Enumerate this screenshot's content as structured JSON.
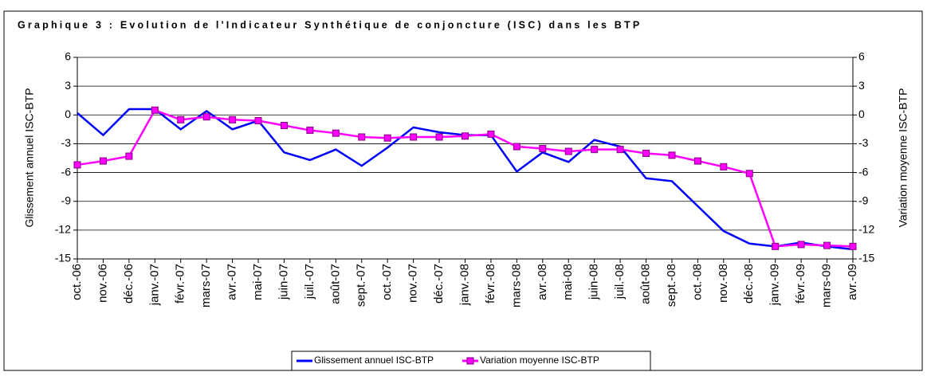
{
  "chart_data": {
    "type": "line",
    "title": "Graphique 3 : Evolution de l'Indicateur Synthétique de conjoncture (ISC) dans les BTP",
    "ylabel": "Glissement annuel ISC-BTP",
    "y2label": "Variation moyenne ISC-BTP",
    "categories": [
      "oct.-06",
      "nov.-06",
      "déc.-06",
      "janv.-07",
      "févr.-07",
      "mars-07",
      "avr.-07",
      "mai-07",
      "juin-07",
      "juil.-07",
      "août-07",
      "sept.-07",
      "oct.-07",
      "nov.-07",
      "déc.-07",
      "janv.-08",
      "févr.-08",
      "mars-08",
      "avr.-08",
      "mai-08",
      "juin-08",
      "juil.-08",
      "août-08",
      "sept.-08",
      "oct.-08",
      "nov.-08",
      "déc.-08",
      "janv.-09",
      "févr.-09",
      "mars-09",
      "avr.-09"
    ],
    "series": [
      {
        "name": "Glissement annuel ISC-BTP",
        "color": "#0000ff",
        "axis": "y",
        "values": [
          0.2,
          -2.1,
          0.6,
          0.6,
          -1.5,
          0.4,
          -1.5,
          -0.6,
          -3.9,
          -4.7,
          -3.6,
          -5.3,
          -3.4,
          -1.3,
          -1.8,
          -2.1,
          -2.1,
          -5.9,
          -3.9,
          -4.9,
          -2.6,
          -3.3,
          -6.6,
          -6.9,
          -9.5,
          -12.1,
          -13.4,
          -13.7,
          -13.3,
          -13.7,
          -14.0
        ]
      },
      {
        "name": "Variation moyenne ISC-BTP",
        "color": "#ff00ff",
        "axis": "y2",
        "values": [
          -5.2,
          -4.8,
          -4.3,
          0.5,
          -0.5,
          -0.2,
          -0.5,
          -0.6,
          -1.1,
          -1.6,
          -1.9,
          -2.3,
          -2.4,
          -2.3,
          -2.3,
          -2.2,
          -2.0,
          -3.3,
          -3.5,
          -3.8,
          -3.6,
          -3.6,
          -4.0,
          -4.2,
          -4.8,
          -5.4,
          -6.1,
          -13.7,
          -13.5,
          -13.6,
          -13.7
        ]
      }
    ],
    "ylim": [
      -15,
      6
    ],
    "yticks": [
      -15,
      -12,
      -9,
      -6,
      -3,
      0,
      3,
      6
    ],
    "y2lim": [
      -15,
      6
    ],
    "y2ticks": [
      -15,
      -12,
      -9,
      -6,
      -3,
      0,
      3,
      6
    ],
    "grid": true,
    "legend": "bottom"
  }
}
